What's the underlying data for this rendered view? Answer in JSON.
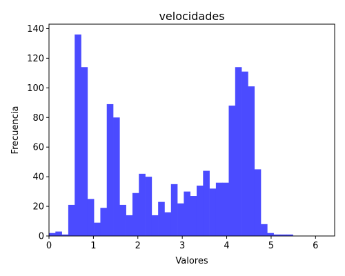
{
  "chart_data": {
    "type": "bar",
    "title": "velocidades",
    "xlabel": "Valores",
    "ylabel": "Frecuencia",
    "xlim": [
      0,
      6.43
    ],
    "ylim": [
      0,
      143
    ],
    "bar_color": "#4B4BFF",
    "bin_width": 0.1445,
    "bin_start": 0,
    "values": [
      2,
      3,
      1,
      21,
      136,
      114,
      25,
      9,
      19,
      89,
      80,
      21,
      14,
      29,
      42,
      40,
      14,
      23,
      16,
      35,
      22,
      30,
      27,
      34,
      44,
      32,
      36,
      36,
      88,
      114,
      111,
      101,
      45,
      8,
      2,
      1,
      1,
      1
    ],
    "xticks": [
      0,
      1,
      2,
      3,
      4,
      5,
      6
    ],
    "yticks": [
      0,
      20,
      40,
      60,
      80,
      100,
      120,
      140
    ],
    "grid": false,
    "legend": "none"
  }
}
